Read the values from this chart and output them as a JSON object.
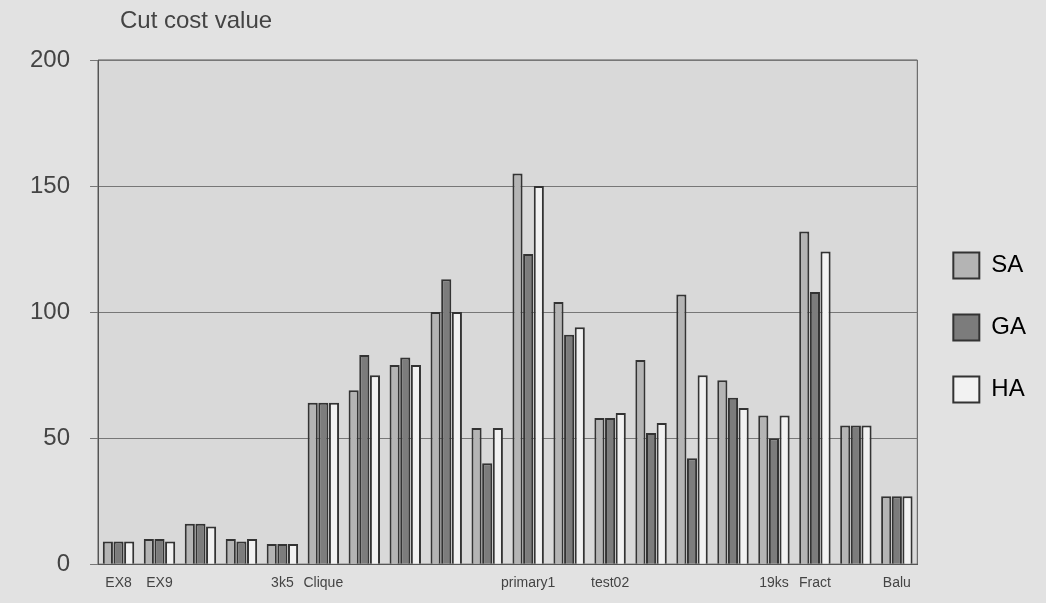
{
  "chart_data": {
    "type": "bar",
    "ylabel": "Cut cost value",
    "categories": [
      "EX8",
      "EX9",
      null,
      null,
      "3k5",
      "Clique",
      null,
      null,
      null,
      null,
      "primary1",
      null,
      "test02",
      null,
      null,
      null,
      "19ks",
      "Fract",
      null,
      "Balu"
    ],
    "series": [
      {
        "name": "SA",
        "color": "#b4b4b4",
        "values": [
          9,
          10,
          16,
          10,
          8,
          64,
          69,
          79,
          100,
          54,
          155,
          104,
          58,
          81,
          107,
          73,
          59,
          132,
          55,
          27
        ]
      },
      {
        "name": "GA",
        "color": "#7c7c7c",
        "values": [
          9,
          10,
          16,
          9,
          8,
          64,
          83,
          82,
          113,
          40,
          123,
          91,
          58,
          52,
          42,
          66,
          50,
          108,
          55,
          27
        ]
      },
      {
        "name": "HA",
        "color": "#f2f2f2",
        "values": [
          9,
          9,
          15,
          10,
          8,
          64,
          75,
          79,
          100,
          54,
          150,
          94,
          60,
          56,
          75,
          62,
          59,
          124,
          55,
          27
        ]
      }
    ],
    "ylim": [
      0,
      200
    ],
    "yticks": [
      0,
      50,
      100,
      150,
      200
    ],
    "grid": "y",
    "legend": "right"
  }
}
